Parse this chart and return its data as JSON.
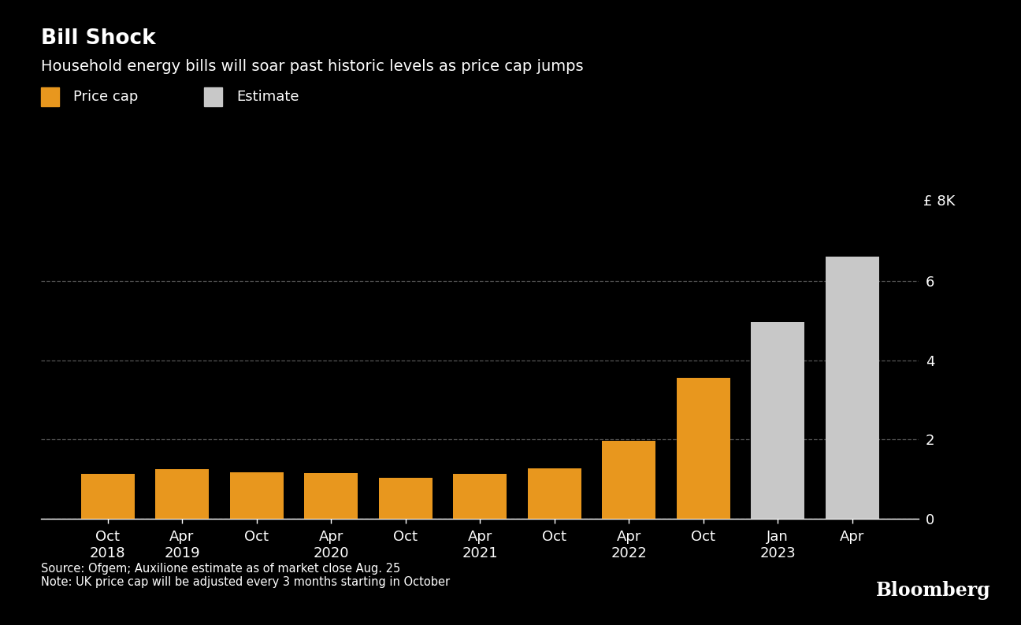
{
  "title_bold": "Bill Shock",
  "title_sub": "Household energy bills will soar past historic levels as price cap jumps",
  "background_color": "#000000",
  "text_color": "#ffffff",
  "bar_data": [
    {
      "label": "Oct\n2018",
      "value": 1.137,
      "type": "price_cap"
    },
    {
      "label": "Apr\n2019",
      "value": 1.254,
      "type": "price_cap"
    },
    {
      "label": "Oct",
      "value": 1.179,
      "type": "price_cap"
    },
    {
      "label": "Apr\n2020",
      "value": 1.162,
      "type": "price_cap"
    },
    {
      "label": "Oct",
      "value": 1.042,
      "type": "price_cap"
    },
    {
      "label": "Apr\n2021",
      "value": 1.138,
      "type": "price_cap"
    },
    {
      "label": "Oct",
      "value": 1.277,
      "type": "price_cap"
    },
    {
      "label": "Apr\n2022",
      "value": 1.971,
      "type": "price_cap"
    },
    {
      "label": "Oct",
      "value": 3.549,
      "type": "price_cap"
    },
    {
      "label": "Jan\n2023",
      "value": 4.966,
      "type": "estimate"
    },
    {
      "label": "Apr",
      "value": 6.616,
      "type": "estimate"
    }
  ],
  "price_cap_color": "#e8971e",
  "estimate_color": "#c8c8c8",
  "grid_color": "#555555",
  "axis_color": "#ffffff",
  "yticks": [
    0,
    2,
    4,
    6
  ],
  "ylim": [
    0,
    8.2
  ],
  "legend_price_cap": "Price cap",
  "legend_estimate": "Estimate",
  "source_text": "Source: Ofgem; Auxilione estimate as of market close Aug. 25\nNote: UK price cap will be adjusted every 3 months starting in October",
  "bloomberg_text": "Bloomberg",
  "fig_width": 12.96,
  "fig_height": 7.94,
  "dpi": 100
}
